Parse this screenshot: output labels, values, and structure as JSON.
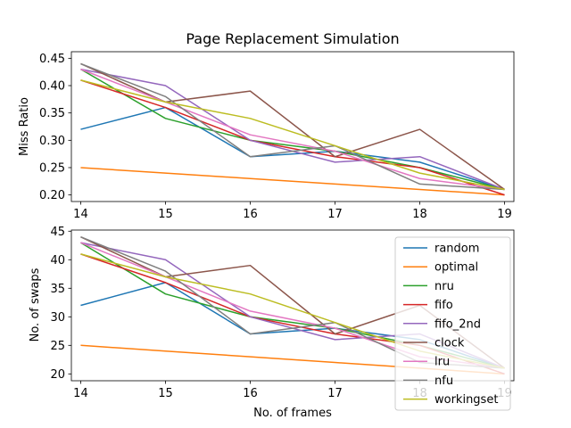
{
  "chart_data": [
    {
      "type": "line",
      "title": "Page Replacement Simulation",
      "xlabel": "",
      "ylabel": "Miss Ratio",
      "xlim": [
        13.89,
        19.11
      ],
      "ylim": [
        0.188,
        0.462
      ],
      "x": [
        14,
        15,
        16,
        17,
        18,
        19
      ],
      "xticks": [
        14,
        15,
        16,
        17,
        18,
        19
      ],
      "yticks": [
        0.2,
        0.25,
        0.3,
        0.35,
        0.4,
        0.45
      ],
      "ytick_labels": [
        "0.20",
        "0.25",
        "0.30",
        "0.35",
        "0.40",
        "0.45"
      ],
      "grid": false,
      "legend": null,
      "series": [
        {
          "name": "random",
          "color": "#1f77b4",
          "values": [
            0.32,
            0.36,
            0.27,
            0.28,
            0.26,
            0.21
          ]
        },
        {
          "name": "optimal",
          "color": "#ff7f0e",
          "values": [
            0.25,
            0.24,
            0.23,
            0.22,
            0.21,
            0.2
          ]
        },
        {
          "name": "nru",
          "color": "#2ca02c",
          "values": [
            0.43,
            0.34,
            0.3,
            0.28,
            0.25,
            0.21
          ]
        },
        {
          "name": "fifo",
          "color": "#d62728",
          "values": [
            0.41,
            0.36,
            0.3,
            0.27,
            0.25,
            0.2
          ]
        },
        {
          "name": "fifo_2nd",
          "color": "#9467bd",
          "values": [
            0.43,
            0.4,
            0.3,
            0.26,
            0.27,
            0.21
          ]
        },
        {
          "name": "clock",
          "color": "#8c564b",
          "values": [
            0.44,
            0.37,
            0.39,
            0.27,
            0.32,
            0.21
          ]
        },
        {
          "name": "lru",
          "color": "#e377c2",
          "values": [
            0.43,
            0.37,
            0.31,
            0.28,
            0.23,
            0.21
          ]
        },
        {
          "name": "nfu",
          "color": "#7f7f7f",
          "values": [
            0.44,
            0.38,
            0.27,
            0.29,
            0.22,
            0.21
          ]
        },
        {
          "name": "workingset",
          "color": "#bcbd22",
          "values": [
            0.41,
            0.37,
            0.34,
            0.29,
            0.24,
            0.21
          ]
        }
      ]
    },
    {
      "type": "line",
      "title": "",
      "xlabel": "No. of frames",
      "ylabel": "No. of swaps",
      "xlim": [
        13.89,
        19.11
      ],
      "ylim": [
        18.8,
        45.2
      ],
      "x": [
        14,
        15,
        16,
        17,
        18,
        19
      ],
      "xticks": [
        14,
        15,
        16,
        17,
        18,
        19
      ],
      "yticks": [
        20,
        25,
        30,
        35,
        40,
        45
      ],
      "ytick_labels": [
        "20",
        "25",
        "30",
        "35",
        "40",
        "45"
      ],
      "grid": false,
      "legend": "right",
      "series": [
        {
          "name": "random",
          "color": "#1f77b4",
          "values": [
            32,
            36,
            27,
            28,
            26,
            21
          ]
        },
        {
          "name": "optimal",
          "color": "#ff7f0e",
          "values": [
            25,
            24,
            23,
            22,
            21,
            20
          ]
        },
        {
          "name": "nru",
          "color": "#2ca02c",
          "values": [
            43,
            34,
            30,
            28,
            25,
            21
          ]
        },
        {
          "name": "fifo",
          "color": "#d62728",
          "values": [
            41,
            36,
            30,
            27,
            25,
            20
          ]
        },
        {
          "name": "fifo_2nd",
          "color": "#9467bd",
          "values": [
            43,
            40,
            30,
            26,
            27,
            21
          ]
        },
        {
          "name": "clock",
          "color": "#8c564b",
          "values": [
            44,
            37,
            39,
            27,
            32,
            21
          ]
        },
        {
          "name": "lru",
          "color": "#e377c2",
          "values": [
            43,
            37,
            31,
            28,
            23,
            21
          ]
        },
        {
          "name": "nfu",
          "color": "#7f7f7f",
          "values": [
            44,
            38,
            27,
            29,
            22,
            21
          ]
        },
        {
          "name": "workingset",
          "color": "#bcbd22",
          "values": [
            41,
            37,
            34,
            29,
            24,
            21
          ]
        }
      ]
    }
  ]
}
